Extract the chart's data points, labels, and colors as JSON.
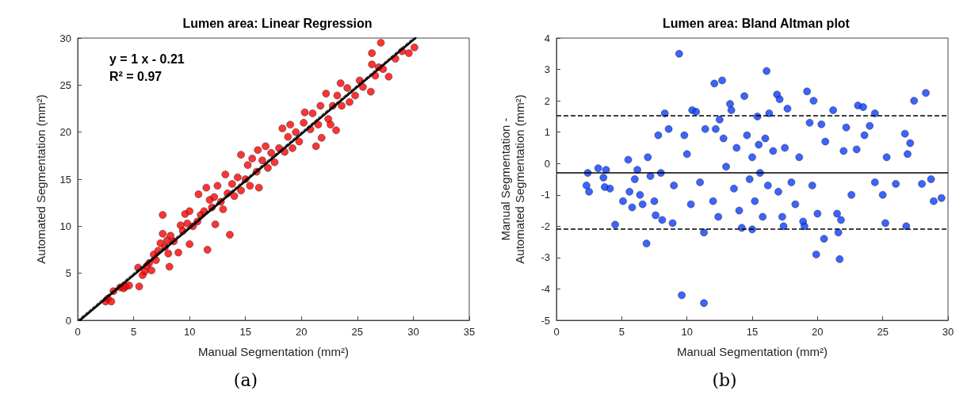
{
  "chart_data": [
    {
      "type": "scatter",
      "title": "Lumen area: Linear Regression",
      "xlabel": "Manual Segmentation (mm²)",
      "ylabel": "Automated Segmentation (mm²)",
      "xlim": [
        0,
        35
      ],
      "xticks": [
        0,
        5,
        10,
        15,
        20,
        25,
        30,
        35
      ],
      "ylim": [
        0,
        30
      ],
      "yticks": [
        0,
        5,
        10,
        15,
        20,
        25,
        30
      ],
      "grid": false,
      "marker": "circle",
      "annotations": [
        "y = 1 x - 0.21",
        "R² = 0.97",
        "(a)"
      ],
      "series": [
        {
          "type": "scatter",
          "color": "#ff0000",
          "x": [
            2.5,
            2.7,
            3.0,
            3.2,
            3.8,
            4.1,
            4.3,
            4.6,
            5.4,
            5.5,
            5.8,
            6.0,
            6.2,
            6.4,
            6.6,
            6.8,
            7.0,
            7.2,
            7.4,
            7.6,
            7.6,
            7.8,
            8.0,
            8.1,
            8.2,
            8.3,
            8.6,
            9.0,
            9.2,
            9.4,
            9.6,
            9.8,
            10.0,
            10.0,
            10.3,
            10.7,
            10.8,
            11.0,
            11.3,
            11.5,
            11.6,
            11.8,
            12.0,
            12.2,
            12.3,
            12.5,
            12.8,
            13.0,
            13.2,
            13.4,
            13.6,
            13.8,
            14.0,
            14.3,
            14.6,
            14.6,
            15.0,
            15.2,
            15.4,
            15.6,
            16.0,
            16.1,
            16.2,
            16.5,
            16.8,
            17.0,
            17.3,
            17.6,
            18.0,
            18.3,
            18.5,
            18.8,
            19.0,
            19.2,
            19.5,
            19.8,
            20.2,
            20.3,
            20.8,
            21.0,
            21.3,
            21.5,
            21.7,
            21.8,
            22.2,
            22.4,
            22.6,
            22.8,
            23.1,
            23.2,
            23.5,
            23.6,
            24.1,
            24.3,
            24.8,
            25.2,
            25.5,
            26.2,
            26.3,
            26.3,
            26.6,
            26.9,
            27.1,
            27.3,
            27.8,
            28.4,
            29.0,
            29.6,
            30.1
          ],
          "values": [
            2.0,
            2.3,
            2.0,
            3.1,
            3.5,
            3.4,
            3.6,
            3.7,
            5.6,
            3.6,
            4.8,
            5.2,
            5.8,
            6.1,
            5.3,
            7.0,
            6.4,
            7.4,
            8.2,
            11.2,
            9.2,
            7.8,
            8.5,
            7.1,
            5.7,
            9.0,
            8.4,
            7.2,
            10.1,
            9.5,
            11.3,
            10.3,
            11.6,
            8.1,
            10.0,
            10.5,
            13.4,
            11.2,
            11.6,
            14.1,
            7.5,
            12.8,
            12.0,
            13.1,
            10.2,
            14.3,
            12.6,
            11.8,
            15.5,
            13.5,
            9.1,
            14.5,
            13.2,
            15.2,
            17.6,
            13.8,
            15.0,
            16.5,
            14.3,
            17.2,
            15.8,
            18.1,
            14.1,
            17.0,
            18.5,
            16.2,
            17.8,
            16.8,
            18.3,
            20.4,
            17.9,
            19.5,
            20.8,
            18.3,
            20.0,
            19.0,
            21.0,
            22.1,
            20.3,
            22.0,
            18.5,
            20.8,
            22.8,
            19.4,
            24.1,
            21.4,
            20.8,
            22.8,
            20.2,
            23.9,
            25.2,
            22.8,
            24.7,
            23.2,
            23.9,
            25.5,
            24.8,
            24.3,
            28.4,
            27.2,
            26.0,
            26.9,
            29.5,
            26.7,
            25.9,
            27.8,
            28.6,
            28.4,
            29.0
          ]
        },
        {
          "type": "line",
          "color": "#000000",
          "marker": "none",
          "line_style": "solid",
          "x": [
            0.2,
            30.2
          ],
          "values": [
            0,
            30
          ]
        },
        {
          "type": "line",
          "color": "#000000",
          "marker": "none",
          "line_style": "dashed",
          "x": [
            0,
            30
          ],
          "values": [
            0,
            30
          ]
        }
      ]
    },
    {
      "type": "scatter",
      "title": "Lumen area: Bland Altman plot",
      "xlabel": "Manual Segmentation (mm²)",
      "ylabel": "Manual Segmentation -\nAutomated Segmentation (mm²)",
      "xlim": [
        0,
        30
      ],
      "xticks": [
        0,
        5,
        10,
        15,
        20,
        25,
        30
      ],
      "ylim": [
        -5,
        4
      ],
      "yticks": [
        -5,
        -4,
        -3,
        -2,
        -1,
        0,
        1,
        2,
        3,
        4
      ],
      "grid": false,
      "marker": "circle",
      "annotations": [
        "(b)"
      ],
      "ref_lines": [
        {
          "axis": "y",
          "value": 1.53,
          "label": null,
          "color": "#000000",
          "line_style": "dashed"
        },
        {
          "axis": "y",
          "value": -0.28,
          "label": null,
          "color": "#000000",
          "line_style": "solid"
        },
        {
          "axis": "y",
          "value": -2.08,
          "label": null,
          "color": "#000000",
          "line_style": "dashed"
        }
      ],
      "series": [
        {
          "type": "scatter",
          "color": "#0a3cff",
          "x": [
            2.3,
            2.4,
            2.5,
            3.2,
            3.6,
            3.7,
            3.8,
            4.1,
            4.5,
            5.1,
            5.5,
            5.6,
            5.8,
            6.0,
            6.2,
            6.4,
            6.6,
            6.9,
            7.0,
            7.2,
            7.5,
            7.6,
            7.8,
            8.0,
            8.1,
            8.3,
            8.6,
            8.9,
            9.0,
            9.4,
            9.6,
            9.8,
            10.0,
            10.3,
            10.4,
            10.7,
            11.0,
            11.3,
            11.3,
            11.4,
            12.0,
            12.1,
            12.2,
            12.4,
            12.5,
            12.7,
            12.8,
            13.0,
            13.3,
            13.4,
            13.6,
            13.8,
            14.0,
            14.2,
            14.4,
            14.6,
            14.8,
            15.0,
            15.0,
            15.2,
            15.4,
            15.5,
            15.6,
            15.8,
            16.0,
            16.1,
            16.2,
            16.3,
            16.6,
            16.9,
            17.0,
            17.1,
            17.3,
            17.4,
            17.5,
            17.7,
            18.0,
            18.3,
            18.6,
            18.9,
            19.0,
            19.2,
            19.4,
            19.6,
            19.7,
            19.9,
            20.0,
            20.3,
            20.5,
            20.6,
            21.2,
            21.5,
            21.6,
            21.7,
            21.8,
            22.0,
            22.2,
            22.6,
            23.0,
            23.1,
            23.5,
            23.6,
            24.0,
            24.4,
            24.4,
            25.0,
            25.2,
            25.3,
            26.0,
            26.7,
            26.8,
            26.9,
            27.1,
            27.4,
            28.0,
            28.3,
            28.7,
            28.9,
            29.5
          ],
          "values": [
            -0.7,
            -0.3,
            -0.9,
            -0.15,
            -0.45,
            -0.75,
            -0.2,
            -0.8,
            -1.95,
            -1.2,
            0.12,
            -0.9,
            -1.4,
            -0.5,
            -0.2,
            -1.0,
            -1.3,
            -2.55,
            0.2,
            -0.4,
            -1.2,
            -1.65,
            0.9,
            -0.3,
            -1.8,
            1.6,
            1.1,
            -1.9,
            -0.7,
            3.5,
            -4.2,
            0.9,
            0.3,
            -1.3,
            1.7,
            1.65,
            -0.6,
            -4.45,
            -2.2,
            1.1,
            -1.2,
            2.55,
            1.1,
            -1.7,
            1.4,
            2.65,
            0.8,
            -0.1,
            1.9,
            1.7,
            -0.8,
            0.5,
            -1.5,
            -2.05,
            2.15,
            0.9,
            -0.5,
            -2.1,
            0.2,
            -1.2,
            1.5,
            0.6,
            -0.3,
            -1.7,
            0.8,
            2.95,
            -0.7,
            1.6,
            0.4,
            2.2,
            -0.9,
            2.05,
            -1.7,
            -2.0,
            0.5,
            1.75,
            -0.6,
            -1.3,
            0.2,
            -1.85,
            -2.0,
            2.3,
            1.3,
            -0.7,
            2.0,
            -2.9,
            -1.6,
            1.25,
            -2.4,
            0.7,
            1.7,
            -1.6,
            -2.2,
            -3.05,
            -1.8,
            0.4,
            1.15,
            -1.0,
            0.45,
            1.85,
            1.8,
            0.9,
            1.2,
            1.6,
            -0.6,
            -1.0,
            -1.9,
            0.2,
            -0.65,
            0.95,
            -2.0,
            0.3,
            0.65,
            2.0,
            -0.65,
            2.25,
            -0.5,
            -1.2,
            -1.1
          ]
        }
      ]
    }
  ]
}
